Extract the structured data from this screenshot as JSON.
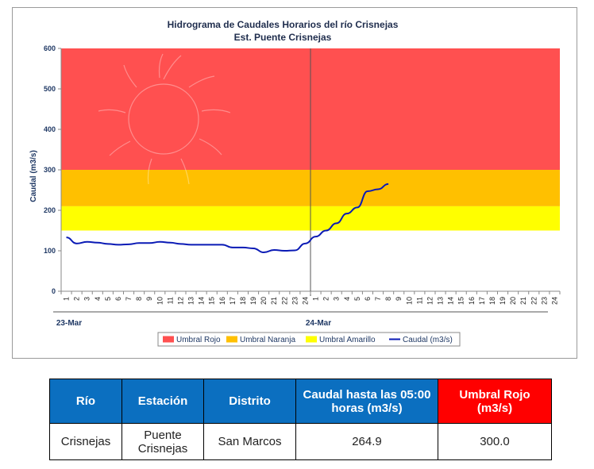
{
  "chart_data": {
    "type": "line",
    "title": "Hidrograma de Caudales Horarios del río Crisnejas",
    "subtitle": "Est. Puente Crisnejas",
    "ylabel": "Caudal  (m3/s)",
    "ylim": [
      0,
      600
    ],
    "yticks": [
      "0",
      "100",
      "200",
      "300",
      "400",
      "500",
      "600"
    ],
    "xticks": [
      "1",
      "2",
      "3",
      "4",
      "5",
      "6",
      "7",
      "8",
      "9",
      "10",
      "11",
      "12",
      "13",
      "14",
      "15",
      "16",
      "17",
      "18",
      "19",
      "20",
      "21",
      "22",
      "23",
      "24",
      "1",
      "2",
      "3",
      "4",
      "5",
      "6",
      "7",
      "8",
      "9",
      "10",
      "11",
      "12",
      "13",
      "14",
      "15",
      "16",
      "17",
      "18",
      "19",
      "20",
      "21",
      "22",
      "23",
      "24"
    ],
    "date_labels": [
      {
        "label": "23-Mar",
        "at_index": 0
      },
      {
        "label": "24-Mar",
        "at_index": 24
      }
    ],
    "grid": false,
    "legend_placement": "bottom",
    "thresholds": [
      {
        "name": "Umbral Rojo",
        "from": 300,
        "to": 600,
        "color": "#ff5050"
      },
      {
        "name": "Umbral Naranja",
        "from": 210,
        "to": 300,
        "color": "#ffc000"
      },
      {
        "name": "Umbral Amarillo",
        "from": 150,
        "to": 210,
        "color": "#ffff00"
      }
    ],
    "series": [
      {
        "name": "Caudal (m3/s)",
        "color": "#0a1ab5",
        "values": [
          133,
          118,
          122,
          120,
          117,
          115,
          116,
          119,
          119,
          122,
          120,
          117,
          115,
          115,
          115,
          115,
          108,
          108,
          106,
          96,
          102,
          100,
          101,
          118,
          135,
          150,
          168,
          192,
          207,
          247,
          252,
          264.9
        ]
      }
    ],
    "divider_index": 24
  },
  "table": {
    "headers": [
      "Río",
      "Estación",
      "Distrito",
      "Caudal hasta las 05:00 horas (m3/s)",
      "Umbral Rojo (m3/s)"
    ],
    "row": [
      "Crisnejas",
      "Puente Crisnejas",
      "San Marcos",
      "264.9",
      "300.0"
    ]
  }
}
